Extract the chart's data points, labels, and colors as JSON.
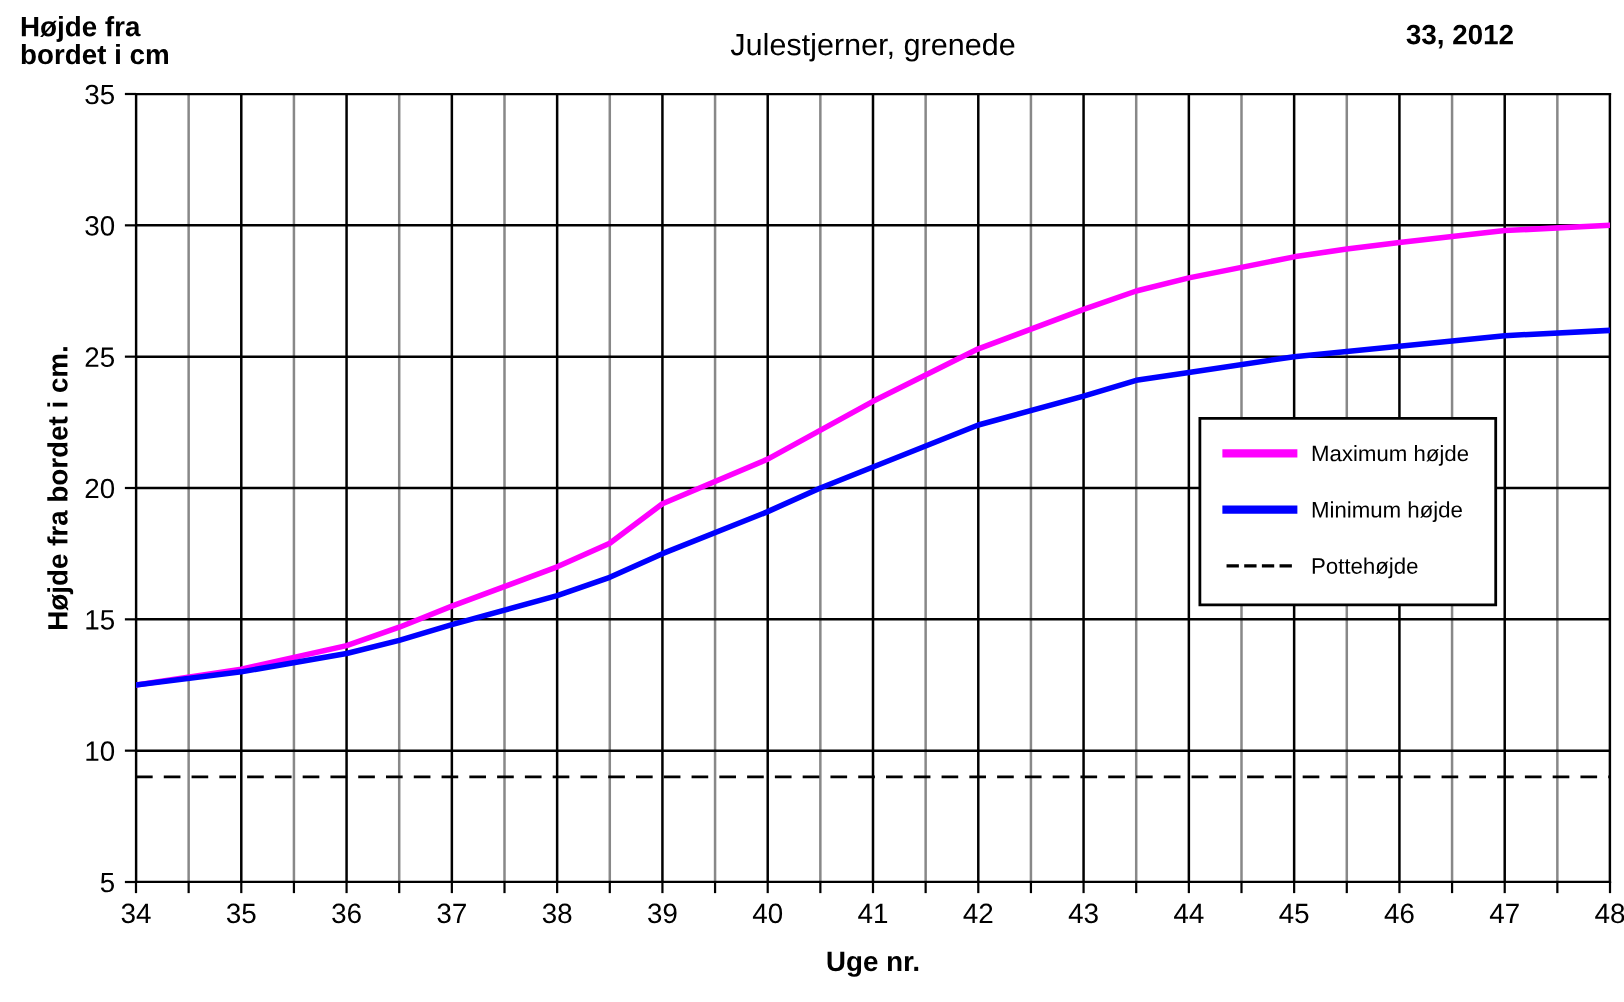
{
  "chart_data": {
    "type": "line",
    "title": "Julestjerner, grenede",
    "xlabel": "Uge nr.",
    "ylabel": "Højde fra bordet i cm.",
    "annotations": [
      "Højde fra\nbordet i cm",
      "33, 2012"
    ],
    "series": [
      {
        "name": "Maximum højde",
        "color": "#ff00ff",
        "x": [
          34,
          35,
          36,
          36.5,
          37,
          38,
          38.5,
          39,
          40,
          41,
          42,
          43,
          43.5,
          44,
          45,
          45.5,
          46,
          47,
          48
        ],
        "values": [
          12.5,
          13.1,
          14.0,
          14.7,
          15.5,
          17.0,
          17.9,
          19.4,
          21.1,
          23.3,
          25.3,
          26.8,
          27.5,
          28.0,
          28.8,
          29.1,
          29.35,
          29.8,
          30.0
        ]
      },
      {
        "name": "Minimum højde",
        "color": "#0000ff",
        "x": [
          34,
          35,
          36,
          36.5,
          37,
          38,
          38.5,
          39,
          40,
          40.5,
          41,
          42,
          43,
          43.5,
          44,
          45,
          46,
          47,
          48
        ],
        "values": [
          12.5,
          13.0,
          13.7,
          14.2,
          14.8,
          15.9,
          16.6,
          17.5,
          19.1,
          20.0,
          20.8,
          22.4,
          23.5,
          24.1,
          24.4,
          25.0,
          25.4,
          25.8,
          26.0
        ]
      },
      {
        "name": "Pottehøjde",
        "color": "#000000",
        "line_style": "dashed",
        "x": [
          34,
          48
        ],
        "values": [
          9,
          9
        ]
      }
    ],
    "xlim": [
      34,
      48
    ],
    "xticks": [
      34,
      {
        "value": 34.5,
        "label": null
      },
      35,
      {
        "value": 35.5,
        "label": null
      },
      36,
      {
        "value": 36.5,
        "label": null
      },
      37,
      {
        "value": 37.5,
        "label": null
      },
      38,
      {
        "value": 38.5,
        "label": null
      },
      39,
      {
        "value": 39.5,
        "label": null
      },
      40,
      {
        "value": 40.5,
        "label": null
      },
      41,
      {
        "value": 41.5,
        "label": null
      },
      42,
      {
        "value": 42.5,
        "label": null
      },
      43,
      {
        "value": 43.5,
        "label": null
      },
      44,
      {
        "value": 44.5,
        "label": null
      },
      45,
      {
        "value": 45.5,
        "label": null
      },
      46,
      {
        "value": 46.5,
        "label": null
      },
      47,
      {
        "value": 47.5,
        "label": null
      },
      48
    ],
    "ylim": [
      5,
      35
    ],
    "yticks": [
      5,
      10,
      15,
      20,
      25,
      30,
      35
    ],
    "grid": true,
    "legend": "right",
    "marker": "none",
    "line_style": "solid"
  }
}
